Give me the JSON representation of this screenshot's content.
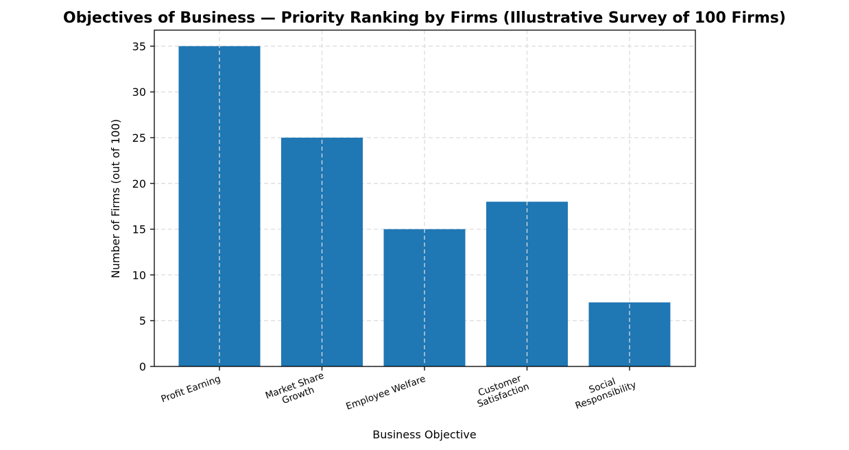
{
  "chart_data": {
    "type": "bar",
    "title": "Objectives of Business — Priority Ranking by Firms (Illustrative Survey of 100 Firms)",
    "xlabel": "Business Objective",
    "ylabel": "Number of Firms (out of 100)",
    "categories": [
      [
        "Profit Earning"
      ],
      [
        "Market Share",
        "Growth"
      ],
      [
        "Employee Welfare"
      ],
      [
        "Customer",
        "Satisfaction"
      ],
      [
        "Social",
        "Responsibility"
      ]
    ],
    "values": [
      35,
      25,
      15,
      18,
      7
    ],
    "ylim": [
      0,
      36.75
    ],
    "yticks": [
      0,
      5,
      10,
      15,
      20,
      25,
      30,
      35
    ],
    "grid": true,
    "bar_color": "#1f77b4"
  }
}
